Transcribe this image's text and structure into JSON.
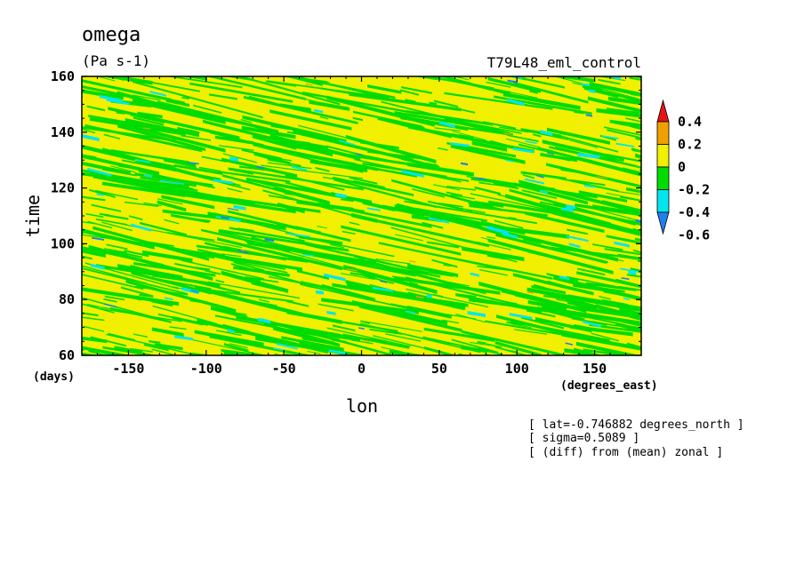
{
  "chart_data": {
    "type": "heatmap",
    "title": "omega",
    "units": "(Pa s-1)",
    "experiment": "T79L48_eml_control",
    "xlabel": "lon",
    "ylabel": "time",
    "x_units": "(degrees_east)",
    "y_units": "(days)",
    "xlim": [
      -180,
      180
    ],
    "ylim": [
      60,
      160
    ],
    "x_ticks": [
      -150,
      -100,
      -50,
      0,
      50,
      100,
      150
    ],
    "y_ticks": [
      60,
      80,
      100,
      120,
      140,
      160
    ],
    "colorbar": {
      "levels": [
        -0.6,
        -0.4,
        -0.2,
        0,
        0.2,
        0.4
      ],
      "labels": [
        "0.4",
        "0.2",
        "0",
        "-0.2",
        "-0.4",
        "-0.6"
      ],
      "colors": [
        "#2080f0",
        "#00e6f0",
        "#00dc00",
        "#f0f000",
        "#f0a000",
        "#e61414"
      ]
    },
    "field_pattern": "westward-tilted diagonal streaks, dominated by values in [-0.2, 0.2]; yellow (0 to 0.2) and green (-0.2 to 0) bands with scattered cyan (-0.4 to -0.2) and blue (<-0.4) patches",
    "annotations": [
      "[ lat=-0.746882 degrees_north ]",
      "[ sigma=0.5089 ]",
      "[ (diff) from (mean) zonal ]"
    ]
  }
}
